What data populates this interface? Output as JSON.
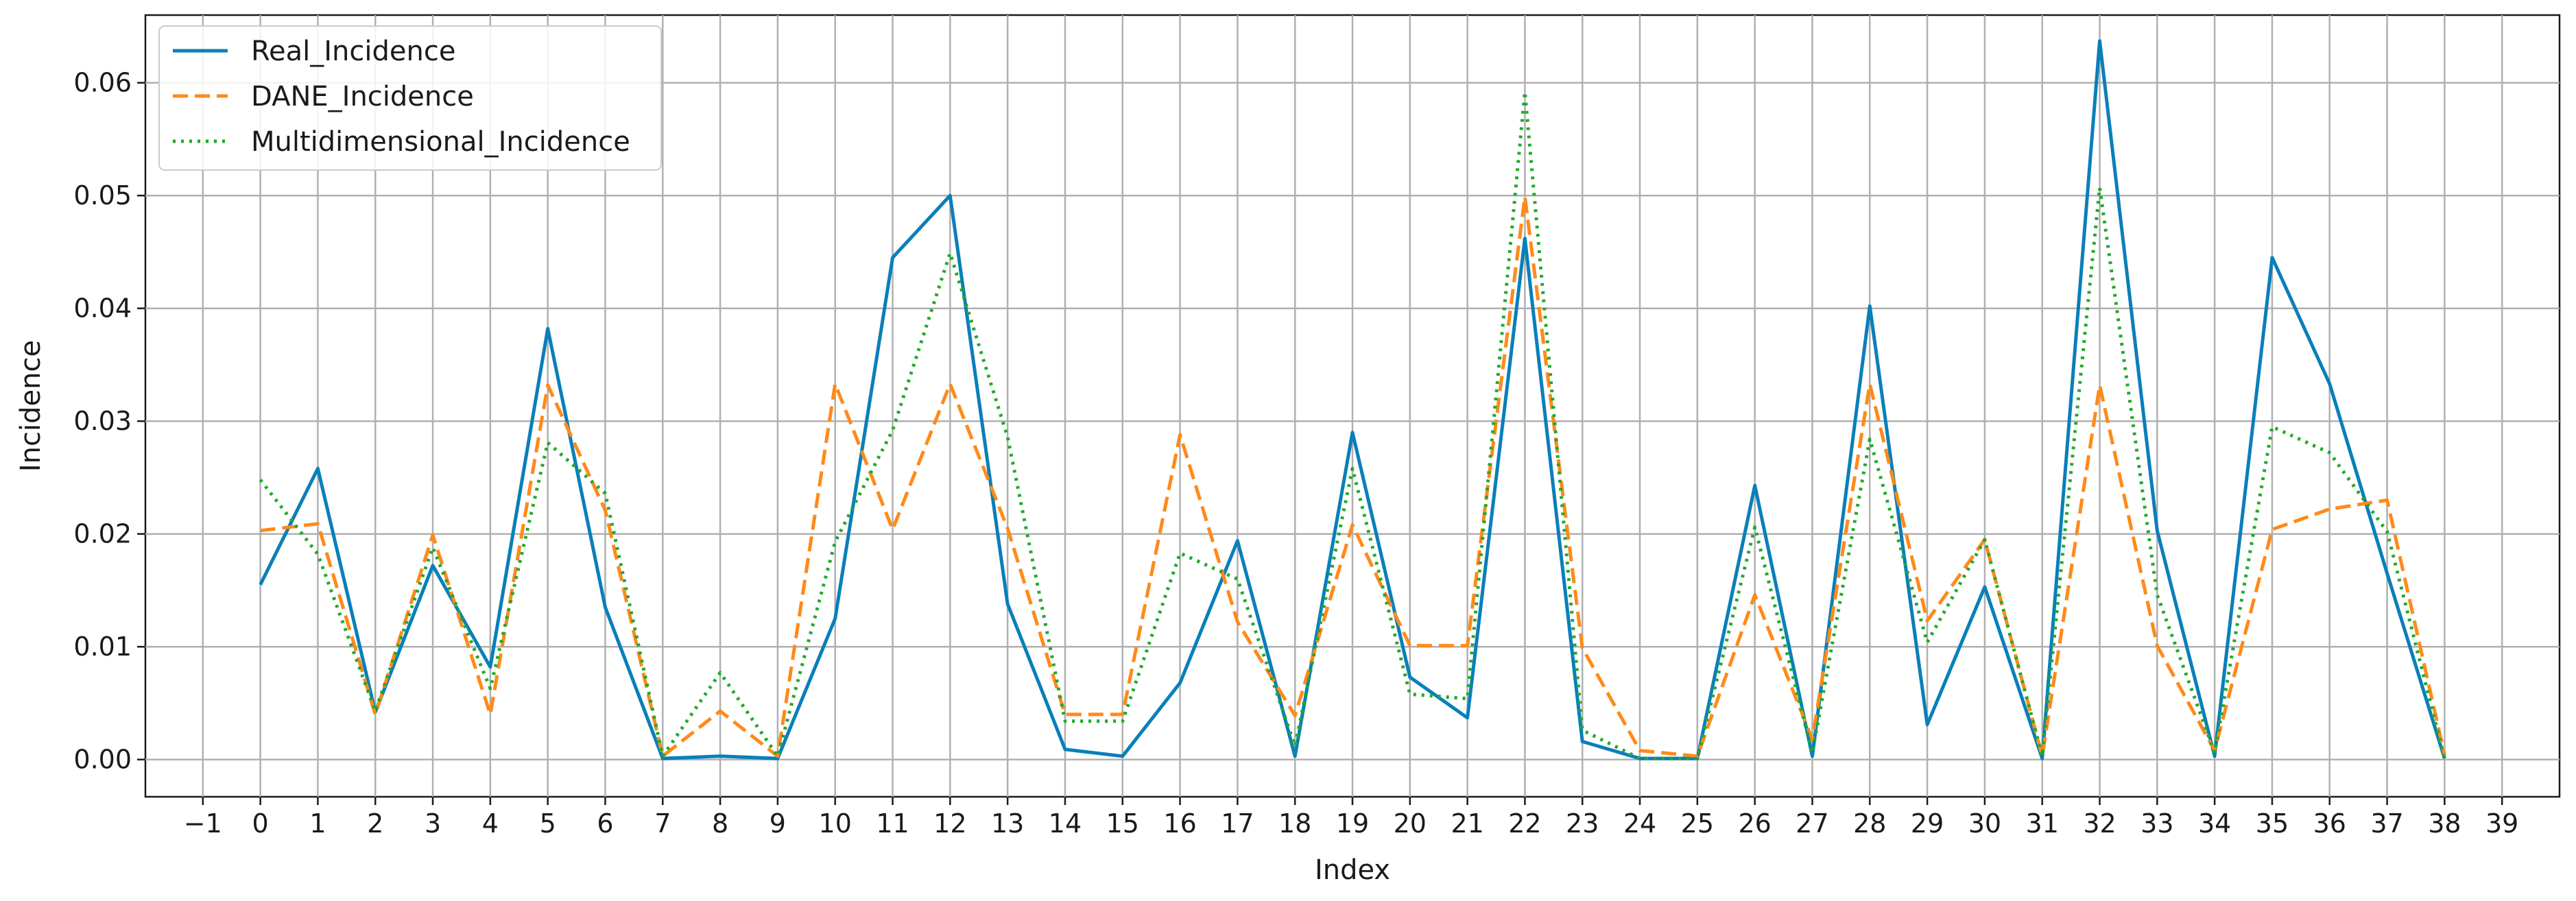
{
  "chart_data": {
    "type": "line",
    "title": "",
    "xlabel": "Index",
    "ylabel": "Incidence",
    "xlim": [
      -2,
      40
    ],
    "ylim": [
      -0.0033,
      0.066
    ],
    "x_ticks": [
      -1,
      0,
      1,
      2,
      3,
      4,
      5,
      6,
      7,
      8,
      9,
      10,
      11,
      12,
      13,
      14,
      15,
      16,
      17,
      18,
      19,
      20,
      21,
      22,
      23,
      24,
      25,
      26,
      27,
      28,
      29,
      30,
      31,
      32,
      33,
      34,
      35,
      36,
      37,
      38,
      39
    ],
    "x_tick_labels": [
      "−1",
      "0",
      "1",
      "2",
      "3",
      "4",
      "5",
      "6",
      "7",
      "8",
      "9",
      "10",
      "11",
      "12",
      "13",
      "14",
      "15",
      "16",
      "17",
      "18",
      "19",
      "20",
      "21",
      "22",
      "23",
      "24",
      "25",
      "26",
      "27",
      "28",
      "29",
      "30",
      "31",
      "32",
      "33",
      "34",
      "35",
      "36",
      "37",
      "38",
      "39"
    ],
    "y_ticks": [
      0.0,
      0.01,
      0.02,
      0.03,
      0.04,
      0.05,
      0.06
    ],
    "y_tick_labels": [
      "0.00",
      "0.01",
      "0.02",
      "0.03",
      "0.04",
      "0.05",
      "0.06"
    ],
    "grid": true,
    "legend_position": "top-left",
    "x": [
      0,
      1,
      2,
      3,
      4,
      5,
      6,
      7,
      8,
      9,
      10,
      11,
      12,
      13,
      14,
      15,
      16,
      17,
      18,
      19,
      20,
      21,
      22,
      23,
      24,
      25,
      26,
      27,
      28,
      29,
      30,
      31,
      32,
      33,
      34,
      35,
      36,
      37,
      38
    ],
    "series": [
      {
        "name": "Real_Incidence",
        "color": "#0a7fba",
        "style": "solid",
        "values": [
          0.0155,
          0.0258,
          0.0042,
          0.0172,
          0.0082,
          0.0382,
          0.0135,
          0.0001,
          0.0003,
          0.0001,
          0.0125,
          0.0445,
          0.05,
          0.0138,
          0.0009,
          0.0003,
          0.0068,
          0.0194,
          0.0003,
          0.029,
          0.0073,
          0.0037,
          0.0462,
          0.0016,
          0.0001,
          0.0001,
          0.0243,
          0.0003,
          0.0402,
          0.0031,
          0.0153,
          0.0001,
          0.0637,
          0.0203,
          0.0003,
          0.0445,
          0.0333,
          0.0165,
          0.0001
        ]
      },
      {
        "name": "DANE_Incidence",
        "color": "#ff8a1a",
        "style": "dashed",
        "values": [
          0.0203,
          0.0209,
          0.004,
          0.0199,
          0.004,
          0.0332,
          0.0221,
          0.0003,
          0.0043,
          0.0003,
          0.0333,
          0.0204,
          0.0333,
          0.0205,
          0.004,
          0.004,
          0.0288,
          0.0122,
          0.0039,
          0.0208,
          0.0101,
          0.0101,
          0.0499,
          0.0099,
          0.0008,
          0.0003,
          0.0146,
          0.0018,
          0.0333,
          0.0123,
          0.0195,
          0.0003,
          0.0332,
          0.0101,
          0.0008,
          0.0204,
          0.0222,
          0.023,
          0.0004
        ]
      },
      {
        "name": "Multidimensional_Incidence",
        "color": "#1fab2a",
        "style": "dotted",
        "values": [
          0.0248,
          0.0182,
          0.0043,
          0.0188,
          0.0063,
          0.0281,
          0.0236,
          0.0003,
          0.0077,
          0.0003,
          0.0193,
          0.0292,
          0.0449,
          0.0286,
          0.0034,
          0.0034,
          0.0183,
          0.016,
          0.0012,
          0.0258,
          0.0058,
          0.0054,
          0.0592,
          0.0026,
          0.0001,
          0.0001,
          0.0206,
          0.0006,
          0.0284,
          0.0104,
          0.0195,
          0.0003,
          0.0507,
          0.0146,
          0.0006,
          0.0295,
          0.0272,
          0.0202,
          0.0001
        ]
      }
    ]
  }
}
